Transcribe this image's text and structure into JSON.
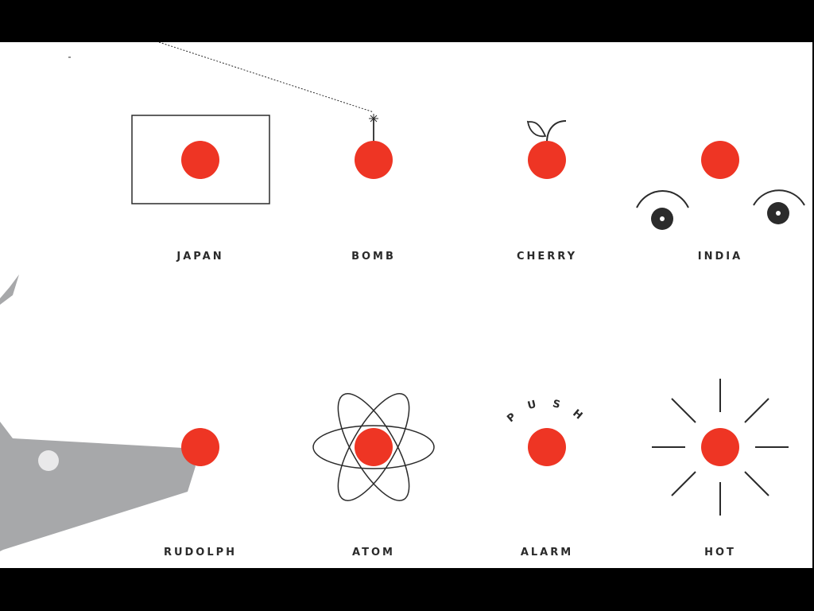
{
  "colors": {
    "dot": "#ee3524",
    "ink": "#2b2b2b",
    "deer": "#a7a8aa",
    "background": "#ffffff",
    "letterbox": "#000000"
  },
  "icons": [
    {
      "id": "japan",
      "label": "JAPAN",
      "icon": "flag-icon"
    },
    {
      "id": "bomb",
      "label": "BOMB",
      "icon": "bomb-icon"
    },
    {
      "id": "cherry",
      "label": "CHERRY",
      "icon": "cherry-icon"
    },
    {
      "id": "india",
      "label": "INDIA",
      "icon": "face-icon"
    },
    {
      "id": "rudolph",
      "label": "RUDOLPH",
      "icon": "reindeer-icon"
    },
    {
      "id": "atom",
      "label": "ATOM",
      "icon": "atom-icon"
    },
    {
      "id": "alarm",
      "label": "ALARM",
      "icon": "alarm-button-icon",
      "caption": [
        "P",
        "U",
        "S",
        "H"
      ]
    },
    {
      "id": "hot",
      "label": "HOT",
      "icon": "sun-rays-icon"
    }
  ]
}
